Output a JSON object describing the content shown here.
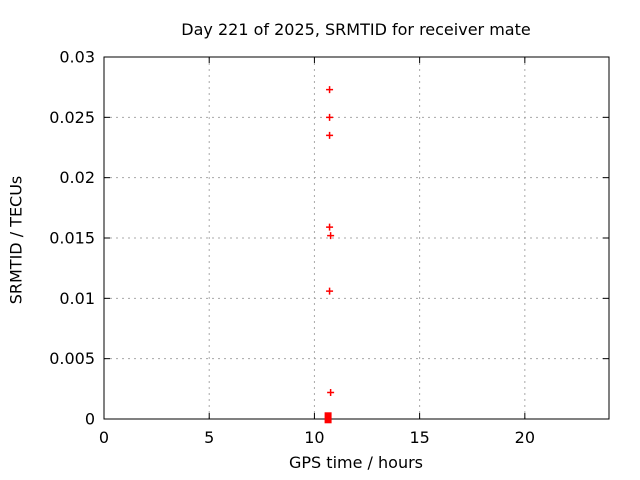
{
  "chart_data": {
    "type": "scatter",
    "title": "Day 221 of 2025, SRMTID for receiver mate",
    "xlabel": "GPS time / hours",
    "ylabel": "SRMTID / TECUs",
    "xlim": [
      0,
      24
    ],
    "ylim": [
      0,
      0.03
    ],
    "xticks": [
      0,
      5,
      10,
      15,
      20
    ],
    "xtick_labels": [
      "0",
      "5",
      "10",
      "15",
      "20"
    ],
    "yticks": [
      0,
      0.005,
      0.01,
      0.015,
      0.02,
      0.025,
      0.03
    ],
    "ytick_labels": [
      "0",
      "0.005",
      "0.01",
      "0.015",
      "0.02",
      "0.025",
      "0.03"
    ],
    "grid": true,
    "legend": "none",
    "series": [
      {
        "name": "SRMTID",
        "marker": "plus",
        "color": "#ff0000",
        "points": [
          {
            "x": 10.72,
            "y": 0.0273
          },
          {
            "x": 10.72,
            "y": 0.025
          },
          {
            "x": 10.72,
            "y": 0.0235
          },
          {
            "x": 10.72,
            "y": 0.0159
          },
          {
            "x": 10.77,
            "y": 0.0152
          },
          {
            "x": 10.72,
            "y": 0.0106
          },
          {
            "x": 10.77,
            "y": 0.0022
          },
          {
            "x": 10.65,
            "y": 0.0001,
            "marker": "dense-cluster-square"
          }
        ]
      }
    ],
    "colors": {
      "marker": "#ff0000",
      "grid": "#a8a8a8",
      "axis": "#000000",
      "background": "#ffffff"
    }
  }
}
